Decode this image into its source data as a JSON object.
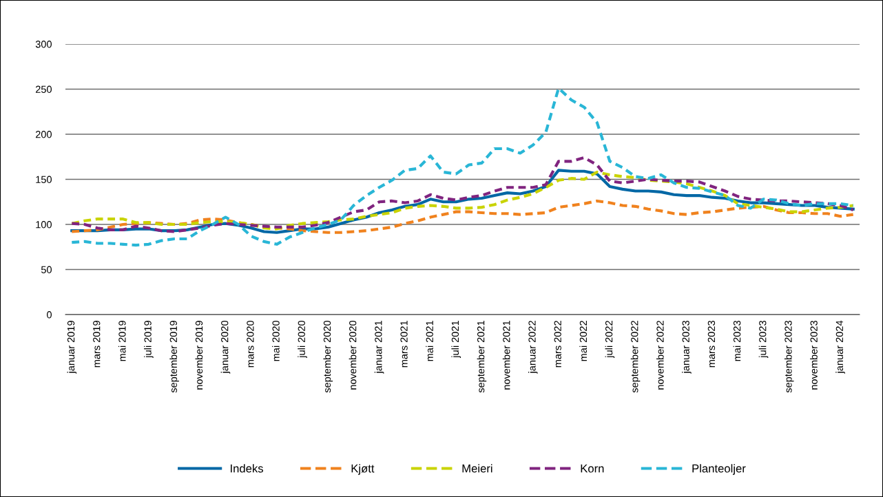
{
  "chart_data": {
    "type": "line",
    "categories": [
      "januar 2019",
      null,
      "mars 2019",
      null,
      "mai 2019",
      null,
      "juli 2019",
      null,
      "september 2019",
      null,
      "november 2019",
      null,
      "januar 2020",
      null,
      "mars 2020",
      null,
      "mai 2020",
      null,
      "juli 2020",
      null,
      "september 2020",
      null,
      "november 2020",
      null,
      "januar 2021",
      null,
      "mars 2021",
      null,
      "mai 2021",
      null,
      "juli 2021",
      null,
      "september 2021",
      null,
      "november 2021",
      null,
      "januar 2022",
      null,
      "mars 2022",
      null,
      "mai 2022",
      null,
      "juli 2022",
      null,
      "september 2022",
      null,
      "november 2022",
      null,
      "januar 2023",
      null,
      "mars 2023",
      null,
      "mai 2023",
      null,
      "juli 2023",
      null,
      "september 2023",
      null,
      "november 2023",
      null,
      "januar 2024",
      null
    ],
    "series": [
      {
        "name": "Indeks",
        "color": "#0067a5",
        "line_style": "solid",
        "values": [
          93,
          93,
          93,
          94,
          94,
          95,
          95,
          93,
          93,
          94,
          97,
          100,
          101,
          99,
          96,
          92,
          91,
          93,
          95,
          95,
          97,
          101,
          105,
          108,
          113,
          116,
          120,
          122,
          128,
          125,
          125,
          128,
          129,
          132,
          135,
          134,
          137,
          142,
          160,
          159,
          159,
          156,
          142,
          139,
          137,
          137,
          136,
          133,
          132,
          132,
          130,
          129,
          126,
          124,
          124,
          123,
          122,
          121,
          121,
          119,
          118,
          117
        ]
      },
      {
        "name": "Kjøtt",
        "color": "#f0821e",
        "line_style": "dashed",
        "values": [
          92,
          93,
          94,
          97,
          100,
          101,
          102,
          101,
          100,
          101,
          105,
          106,
          105,
          102,
          100,
          97,
          96,
          95,
          93,
          92,
          91,
          91,
          92,
          93,
          95,
          97,
          101,
          104,
          108,
          111,
          114,
          114,
          113,
          112,
          112,
          111,
          112,
          113,
          119,
          121,
          123,
          126,
          124,
          121,
          120,
          117,
          115,
          112,
          111,
          113,
          114,
          116,
          118,
          119,
          120,
          116,
          113,
          113,
          112,
          112,
          109,
          111
        ]
      },
      {
        "name": "Meieri",
        "color": "#c9d300",
        "line_style": "dashed",
        "values": [
          101,
          104,
          106,
          106,
          106,
          102,
          102,
          100,
          100,
          100,
          102,
          103,
          103,
          102,
          100,
          96,
          95,
          99,
          101,
          102,
          103,
          105,
          106,
          109,
          111,
          113,
          118,
          120,
          121,
          120,
          118,
          118,
          119,
          122,
          127,
          130,
          134,
          141,
          149,
          151,
          150,
          158,
          155,
          153,
          152,
          149,
          148,
          147,
          145,
          141,
          137,
          132,
          123,
          121,
          119,
          117,
          114,
          114,
          116,
          118,
          119,
          121
        ]
      },
      {
        "name": "Korn",
        "color": "#80247f",
        "line_style": "dashed",
        "values": [
          101,
          100,
          96,
          94,
          94,
          98,
          96,
          93,
          92,
          94,
          96,
          99,
          101,
          100,
          99,
          98,
          97,
          97,
          97,
          99,
          102,
          108,
          114,
          116,
          125,
          126,
          124,
          126,
          133,
          129,
          127,
          130,
          132,
          137,
          141,
          141,
          141,
          144,
          170,
          170,
          174,
          166,
          148,
          146,
          148,
          150,
          149,
          148,
          148,
          147,
          142,
          137,
          131,
          128,
          127,
          126,
          126,
          125,
          124,
          123,
          121,
          116
        ]
      },
      {
        "name": "Planteoljer",
        "color": "#29b6d6",
        "line_style": "dashed",
        "values": [
          80,
          81,
          79,
          79,
          78,
          77,
          78,
          82,
          84,
          84,
          93,
          100,
          108,
          100,
          87,
          81,
          78,
          86,
          91,
          96,
          100,
          105,
          121,
          132,
          141,
          149,
          160,
          162,
          176,
          158,
          156,
          166,
          168,
          184,
          184,
          179,
          188,
          202,
          251,
          238,
          230,
          213,
          170,
          163,
          153,
          151,
          155,
          146,
          141,
          140,
          136,
          132,
          121,
          118,
          128,
          127,
          123,
          121,
          123,
          123,
          123,
          121
        ]
      }
    ],
    "ylim": [
      0,
      300
    ],
    "yticks": [
      0,
      50,
      100,
      150,
      200,
      250,
      300
    ],
    "grid": "y",
    "legend": "bottom"
  }
}
